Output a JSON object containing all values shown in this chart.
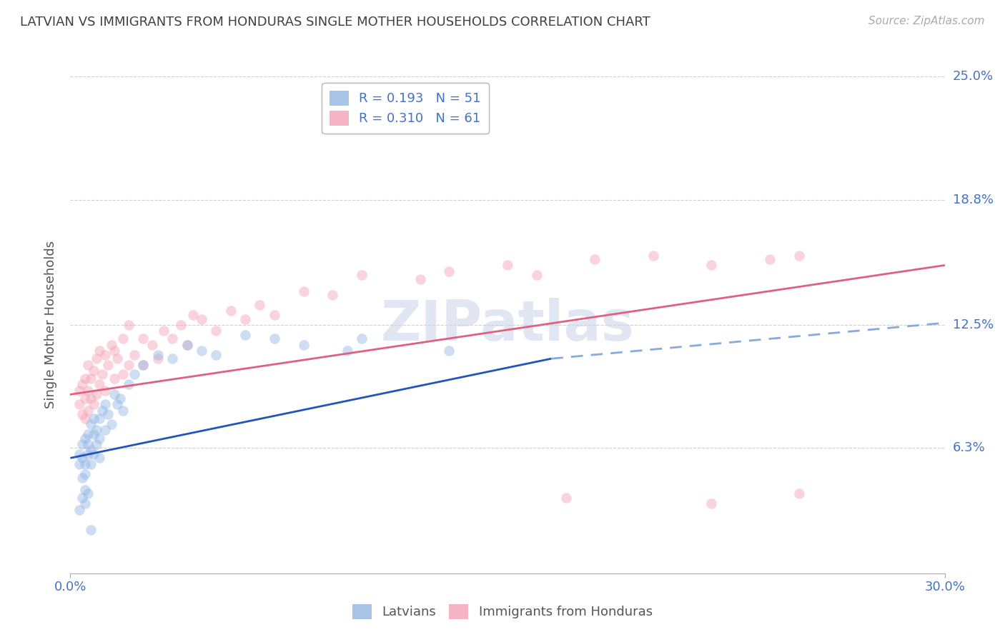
{
  "title": "LATVIAN VS IMMIGRANTS FROM HONDURAS SINGLE MOTHER HOUSEHOLDS CORRELATION CHART",
  "source": "Source: ZipAtlas.com",
  "ylabel_label": "Single Mother Households",
  "xlim": [
    0.0,
    0.3
  ],
  "ylim": [
    0.0,
    0.25
  ],
  "ytick_positions": [
    0.063,
    0.125,
    0.188,
    0.25
  ],
  "ytick_labels": [
    "6.3%",
    "12.5%",
    "18.8%",
    "25.0%"
  ],
  "xtick_positions": [
    0.0,
    0.3
  ],
  "xtick_labels": [
    "0.0%",
    "30.0%"
  ],
  "latvian_color": "#92b4e3",
  "honduras_color": "#f4a0b5",
  "legend_latvian_label": "R = 0.193   N = 51",
  "legend_honduras_label": "R = 0.310   N = 61",
  "bottom_legend_latvian": "Latvians",
  "bottom_legend_honduras": "Immigrants from Honduras",
  "watermark": "ZIPatlas",
  "background_color": "#ffffff",
  "grid_color": "#d0d0d0",
  "axis_label_color": "#4472c4",
  "title_color": "#404040",
  "latvian_scatter": {
    "x": [
      0.003,
      0.003,
      0.004,
      0.004,
      0.004,
      0.005,
      0.005,
      0.005,
      0.005,
      0.006,
      0.006,
      0.006,
      0.007,
      0.007,
      0.007,
      0.008,
      0.008,
      0.008,
      0.009,
      0.009,
      0.01,
      0.01,
      0.01,
      0.011,
      0.012,
      0.012,
      0.013,
      0.014,
      0.015,
      0.016,
      0.017,
      0.018,
      0.02,
      0.022,
      0.025,
      0.03,
      0.035,
      0.04,
      0.045,
      0.05,
      0.06,
      0.07,
      0.08,
      0.095,
      0.1,
      0.13,
      0.003,
      0.004,
      0.005,
      0.006,
      0.007
    ],
    "y": [
      0.055,
      0.06,
      0.048,
      0.058,
      0.065,
      0.042,
      0.05,
      0.055,
      0.068,
      0.06,
      0.065,
      0.07,
      0.055,
      0.062,
      0.075,
      0.06,
      0.07,
      0.078,
      0.065,
      0.072,
      0.058,
      0.068,
      0.078,
      0.082,
      0.072,
      0.085,
      0.08,
      0.075,
      0.09,
      0.085,
      0.088,
      0.082,
      0.095,
      0.1,
      0.105,
      0.11,
      0.108,
      0.115,
      0.112,
      0.11,
      0.12,
      0.118,
      0.115,
      0.112,
      0.118,
      0.112,
      0.032,
      0.038,
      0.035,
      0.04,
      0.022
    ]
  },
  "honduras_scatter": {
    "x": [
      0.003,
      0.003,
      0.004,
      0.004,
      0.005,
      0.005,
      0.005,
      0.006,
      0.006,
      0.006,
      0.007,
      0.007,
      0.008,
      0.008,
      0.009,
      0.009,
      0.01,
      0.01,
      0.011,
      0.012,
      0.012,
      0.013,
      0.014,
      0.015,
      0.015,
      0.016,
      0.018,
      0.018,
      0.02,
      0.02,
      0.022,
      0.025,
      0.025,
      0.028,
      0.03,
      0.032,
      0.035,
      0.038,
      0.04,
      0.042,
      0.045,
      0.05,
      0.055,
      0.06,
      0.065,
      0.07,
      0.08,
      0.09,
      0.1,
      0.12,
      0.13,
      0.15,
      0.16,
      0.18,
      0.2,
      0.22,
      0.24,
      0.25,
      0.17,
      0.22,
      0.25
    ],
    "y": [
      0.085,
      0.092,
      0.08,
      0.095,
      0.078,
      0.088,
      0.098,
      0.082,
      0.092,
      0.105,
      0.088,
      0.098,
      0.085,
      0.102,
      0.09,
      0.108,
      0.095,
      0.112,
      0.1,
      0.092,
      0.11,
      0.105,
      0.115,
      0.098,
      0.112,
      0.108,
      0.1,
      0.118,
      0.105,
      0.125,
      0.11,
      0.105,
      0.118,
      0.115,
      0.108,
      0.122,
      0.118,
      0.125,
      0.115,
      0.13,
      0.128,
      0.122,
      0.132,
      0.128,
      0.135,
      0.13,
      0.142,
      0.14,
      0.15,
      0.148,
      0.152,
      0.155,
      0.15,
      0.158,
      0.16,
      0.155,
      0.158,
      0.16,
      0.038,
      0.035,
      0.04
    ]
  },
  "latvian_line_solid": {
    "x0": 0.0,
    "y0": 0.058,
    "x1": 0.165,
    "y1": 0.108
  },
  "latvian_line_dashed": {
    "x0": 0.165,
    "y0": 0.108,
    "x1": 0.3,
    "y1": 0.126
  },
  "honduras_line": {
    "x0": 0.0,
    "y0": 0.09,
    "x1": 0.3,
    "y1": 0.155
  },
  "scatter_size": 110,
  "scatter_alpha": 0.45,
  "line_width": 2.0,
  "latvian_line_color": "#2255bb",
  "latvian_dashed_color": "#88aadd",
  "honduras_line_color": "#e06080"
}
